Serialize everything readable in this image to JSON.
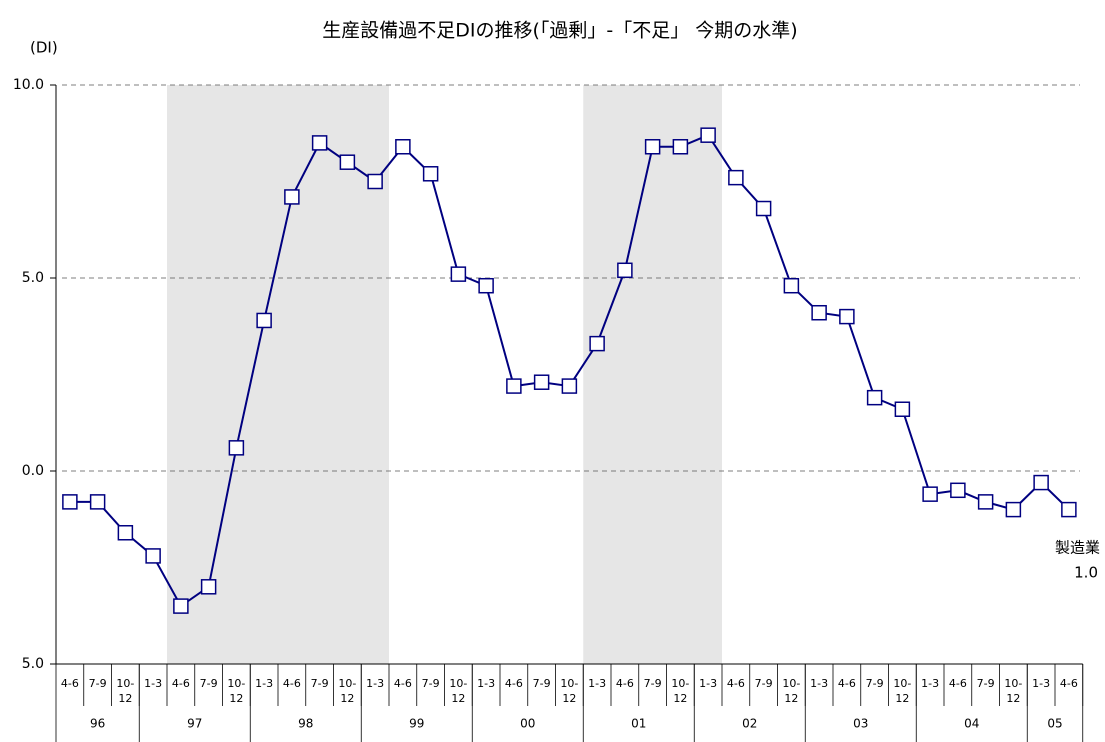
{
  "chart_data": {
    "type": "line",
    "title": "生産設備過不足DIの推移(「過剰」-「不足」 今期の水準)",
    "y_label": "(DI)",
    "categories": [
      "4-6",
      "7-9",
      "10-12",
      "1-3",
      "4-6",
      "7-9",
      "10-12",
      "1-3",
      "4-6",
      "7-9",
      "10-12",
      "1-3",
      "4-6",
      "7-9",
      "10-12",
      "1-3",
      "4-6",
      "7-9",
      "10-12",
      "1-3",
      "4-6",
      "7-9",
      "10-12",
      "1-3",
      "4-6",
      "7-9",
      "10-12",
      "1-3",
      "4-6",
      "7-9",
      "10-12",
      "1-3",
      "4-6",
      "7-9",
      "10-12",
      "1-3",
      "4-6"
    ],
    "year_groups": [
      {
        "label": "96",
        "count": 3
      },
      {
        "label": "97",
        "count": 4
      },
      {
        "label": "98",
        "count": 4
      },
      {
        "label": "99",
        "count": 4
      },
      {
        "label": "00",
        "count": 4
      },
      {
        "label": "01",
        "count": 4
      },
      {
        "label": "02",
        "count": 4
      },
      {
        "label": "03",
        "count": 4
      },
      {
        "label": "04",
        "count": 4
      },
      {
        "label": "05",
        "count": 2
      }
    ],
    "shaded": [
      {
        "from": 4,
        "to": 11
      },
      {
        "from": 19,
        "to": 23
      }
    ],
    "series": [
      {
        "name": "製造業",
        "color": "#000080",
        "values": [
          -0.8,
          -0.8,
          -1.6,
          -2.2,
          -3.5,
          -3.0,
          0.6,
          3.9,
          7.1,
          8.5,
          8.0,
          7.5,
          8.4,
          7.7,
          5.1,
          4.8,
          2.2,
          2.3,
          2.2,
          3.3,
          5.2,
          8.4,
          8.4,
          8.7,
          7.6,
          6.8,
          4.8,
          4.1,
          4.0,
          1.9,
          1.6,
          -0.6,
          -0.5,
          -0.8,
          -1.0,
          -0.3,
          -1.0
        ],
        "value_labels": [
          null,
          null,
          null,
          null,
          null,
          null,
          null,
          null,
          null,
          null,
          null,
          null,
          null,
          null,
          null,
          null,
          null,
          null,
          null,
          null,
          null,
          null,
          null,
          null,
          null,
          null,
          null,
          null,
          null,
          null,
          null,
          null,
          null,
          null,
          null,
          null,
          "1.0"
        ]
      }
    ],
    "ylim": [
      -5,
      10
    ],
    "yticks": [
      {
        "value": -5,
        "label": "5.0"
      },
      {
        "value": 0,
        "label": "0.0"
      },
      {
        "value": 5,
        "label": "5.0"
      },
      {
        "value": 10,
        "label": "10.0"
      }
    ],
    "grid": true
  }
}
